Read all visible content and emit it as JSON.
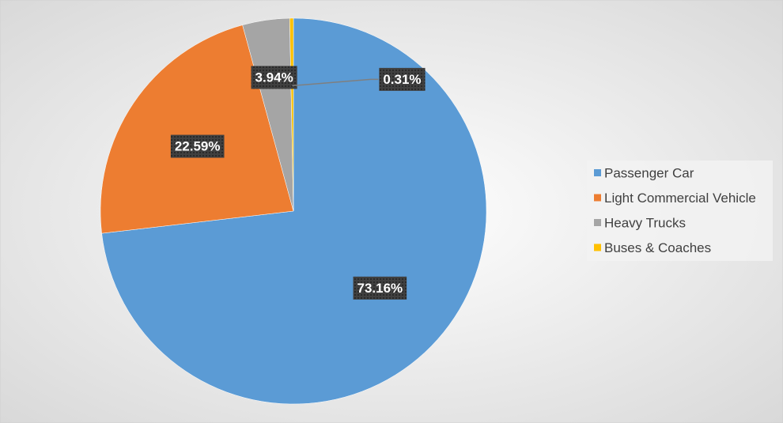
{
  "chart_data": {
    "type": "pie",
    "categories": [
      "Passenger Car",
      "Light Commercial Vehicle",
      "Heavy Trucks",
      "Buses & Coaches"
    ],
    "values": [
      73.16,
      22.59,
      3.94,
      0.31
    ],
    "value_labels": [
      "73.16%",
      "22.59%",
      "3.94%",
      "0.31%"
    ],
    "colors": [
      "#5b9bd5",
      "#ed7d31",
      "#a5a5a5",
      "#ffc000"
    ],
    "legend": "right"
  }
}
